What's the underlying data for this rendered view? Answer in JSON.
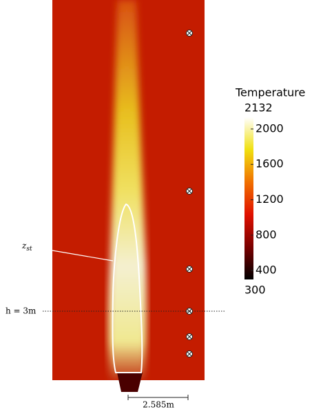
{
  "chart_data": {
    "type": "heatmap",
    "colorbar": {
      "title": "Temperature",
      "clim": [
        300,
        2132
      ],
      "ticks": [
        400,
        800,
        1200,
        1600,
        2000
      ]
    },
    "annotations": {
      "contour": {
        "text": "z",
        "subscript": "st"
      },
      "height": "h = 3m",
      "scale": "2.585m"
    }
  }
}
